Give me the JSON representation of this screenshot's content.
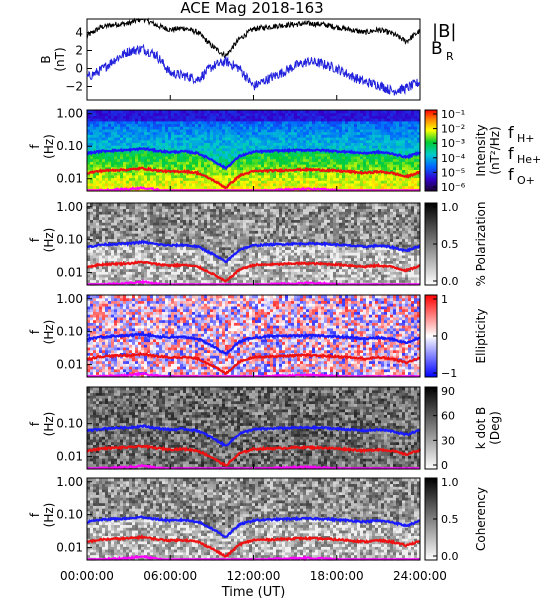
{
  "title": "ACE Mag 2018-163",
  "colors": {
    "B": "#000000",
    "BR": "#2222dd",
    "fH": "#1a1aff",
    "fHe": "#ee1111",
    "fO": "#ff00ff"
  },
  "chart_data": [
    {
      "type": "line",
      "panel": "B",
      "ylabel": "B (nT)",
      "ylabel_main": "B",
      "ylabel_unit": "(nT)",
      "ylim": [
        -3.5,
        5.5
      ],
      "yticks": [
        "4",
        "2",
        "0",
        "−2"
      ],
      "ytick_values": [
        4,
        2,
        0,
        -2
      ],
      "x": [
        0,
        1,
        2,
        3,
        4,
        5,
        6,
        7,
        8,
        9,
        10,
        11,
        12,
        13,
        14,
        15,
        16,
        17,
        18,
        19,
        20,
        21,
        22,
        23,
        24
      ],
      "series": [
        {
          "name": "|B|",
          "values": [
            3.6,
            4.6,
            4.9,
            5.0,
            5.6,
            4.8,
            4.3,
            4.5,
            4.0,
            2.5,
            1.4,
            3.3,
            4.4,
            4.6,
            4.8,
            4.9,
            5.0,
            4.9,
            4.6,
            4.3,
            4.0,
            4.3,
            3.9,
            3.0,
            4.2
          ]
        },
        {
          "name": "B_R",
          "values": [
            -1.0,
            -0.2,
            1.0,
            1.9,
            2.2,
            1.5,
            -0.5,
            -0.8,
            -1.2,
            0.2,
            0.8,
            0.0,
            -2.0,
            -1.2,
            -0.5,
            0.3,
            0.8,
            0.5,
            0.0,
            -0.8,
            -1.5,
            -1.8,
            -2.5,
            -2.2,
            -1.5
          ]
        }
      ],
      "legend": [
        "|B|",
        "B",
        "R"
      ]
    },
    {
      "type": "heatmap",
      "panel": "intensity",
      "ylabel_main": "f",
      "ylabel_unit": "(Hz)",
      "yticks": [
        "1.00",
        "0.10",
        "0.01"
      ],
      "colorbar_label_main": "Intensity",
      "colorbar_label_unit": "(nT²/Hz)",
      "colorbar_ticks": [
        "10⁻¹",
        "10⁻²",
        "10⁻³",
        "10⁻⁴",
        "10⁻⁵",
        "10⁻⁶"
      ],
      "legend": [
        "f",
        "H+",
        "f",
        "He+",
        "f",
        "O+"
      ]
    },
    {
      "type": "heatmap",
      "panel": "polarization",
      "ylabel_main": "f",
      "ylabel_unit": "(Hz)",
      "yticks": [
        "1.00",
        "0.10",
        "0.01"
      ],
      "colorbar_label": "% Polarization",
      "colorbar_ticks": [
        "1.0",
        "0.5",
        "0.0"
      ]
    },
    {
      "type": "heatmap",
      "panel": "ellipticity",
      "ylabel_main": "f",
      "ylabel_unit": "(Hz)",
      "yticks": [
        "1.00",
        "0.10",
        "0.01"
      ],
      "colorbar_label": "Ellipticity",
      "colorbar_ticks": [
        "1",
        "0",
        "−1"
      ]
    },
    {
      "type": "heatmap",
      "panel": "kdotb",
      "ylabel_main": "f",
      "ylabel_unit": "(Hz)",
      "yticks": [
        "0.10",
        "0.01"
      ],
      "colorbar_label_main": "k dot B",
      "colorbar_label_unit": "(Deg)",
      "colorbar_ticks": [
        "90",
        "60",
        "30",
        "0"
      ]
    },
    {
      "type": "heatmap",
      "panel": "coherency",
      "ylabel_main": "f",
      "ylabel_unit": "(Hz)",
      "yticks": [
        "1.00",
        "0.10",
        "0.01"
      ],
      "colorbar_label": "Coherency",
      "colorbar_ticks": [
        "1.0",
        "0.5",
        "0.0"
      ],
      "xlabel": "Time (UT)",
      "xticks": [
        "00:00:00",
        "06:00:00",
        "12:00:00",
        "18:00:00",
        "24:00:00"
      ]
    },
    {
      "type": "line",
      "panel": "cyclotron-frequencies",
      "x": [
        0,
        1,
        2,
        3,
        4,
        5,
        6,
        7,
        8,
        9,
        10,
        11,
        12,
        13,
        14,
        15,
        16,
        17,
        18,
        19,
        20,
        21,
        22,
        23,
        24
      ],
      "series": [
        {
          "name": "H+",
          "values": [
            0.06,
            0.07,
            0.074,
            0.076,
            0.085,
            0.073,
            0.066,
            0.069,
            0.061,
            0.038,
            0.021,
            0.05,
            0.067,
            0.07,
            0.073,
            0.075,
            0.076,
            0.075,
            0.07,
            0.066,
            0.061,
            0.066,
            0.059,
            0.046,
            0.064
          ]
        },
        {
          "name": "He+",
          "values": [
            0.015,
            0.0175,
            0.0185,
            0.019,
            0.021,
            0.018,
            0.0165,
            0.017,
            0.015,
            0.0095,
            0.0053,
            0.0125,
            0.017,
            0.0175,
            0.018,
            0.019,
            0.019,
            0.0185,
            0.0175,
            0.0165,
            0.015,
            0.0165,
            0.015,
            0.0115,
            0.016
          ]
        },
        {
          "name": "O+",
          "values": [
            0.0038,
            0.0044,
            0.0046,
            0.0048,
            0.0053,
            0.0046,
            0.0041,
            0.0043,
            0.0038,
            0.0024,
            0.0013,
            0.0031,
            0.0042,
            0.0044,
            0.0046,
            0.0047,
            0.0048,
            0.0047,
            0.0044,
            0.0041,
            0.0038,
            0.0041,
            0.0037,
            0.0029,
            0.004
          ]
        }
      ]
    }
  ]
}
